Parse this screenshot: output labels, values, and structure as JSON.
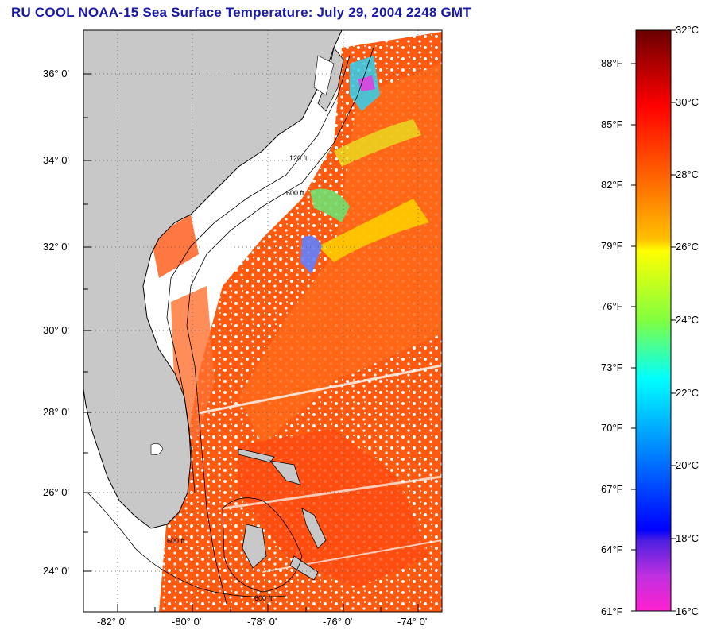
{
  "title": "RU COOL  NOAA-15  Sea Surface Temperature:  July 29, 2004 2248 GMT",
  "map": {
    "lat_labels": [
      "36° 0'",
      "34° 0'",
      "32° 0'",
      "30° 0'",
      "28° 0'",
      "26° 0'",
      "24° 0'"
    ],
    "lon_labels": [
      "-82° 0'",
      "-80° 0'",
      "-78° 0'",
      "-76° 0'",
      "-74° 0'"
    ],
    "contour_labels": [
      "120 ft",
      "600 ft"
    ],
    "colors": {
      "land": "#c8c8c8",
      "cloud": "#ffffff",
      "warm": "#ff5a10"
    }
  },
  "colorbar": {
    "celsius": [
      "32°C",
      "30°C",
      "28°C",
      "26°C",
      "24°C",
      "22°C",
      "20°C",
      "18°C",
      "16°C"
    ],
    "fahrenheit": [
      "88°F",
      "85°F",
      "82°F",
      "79°F",
      "76°F",
      "73°F",
      "70°F",
      "67°F",
      "64°F",
      "61°F"
    ]
  }
}
